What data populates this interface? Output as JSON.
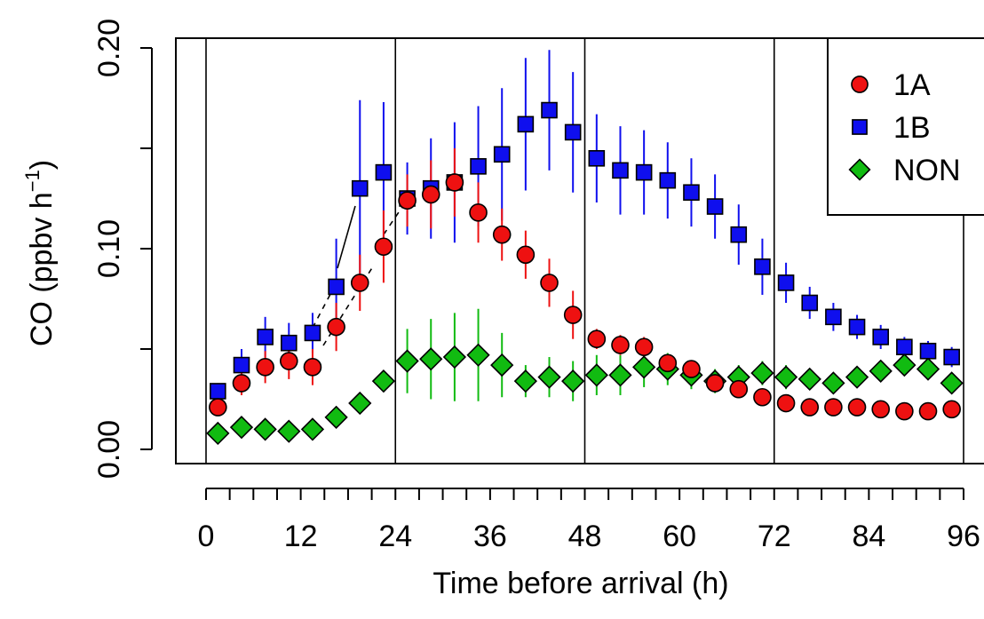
{
  "chart_data": {
    "type": "scatter",
    "xlabel": "Time before arrival (h)",
    "ylabel": "CO (ppbv h⁻¹)",
    "ylabel_parts": [
      "CO (ppbv h",
      "−1",
      ")"
    ],
    "xlim": [
      0,
      96
    ],
    "ylim": [
      0,
      0.2
    ],
    "xticks": [
      0,
      12,
      24,
      36,
      48,
      60,
      72,
      84,
      96
    ],
    "xtick_labels": [
      "0",
      "12",
      "24",
      "36",
      "48",
      "60",
      "72",
      "84",
      "96"
    ],
    "xminor_step": 3,
    "yticks": [
      0,
      0.05,
      0.1,
      0.15,
      0.2
    ],
    "ytick_labels": [
      "0.00",
      "0.10",
      "0.20"
    ],
    "ytick_label_values": [
      0,
      0.1,
      0.2
    ],
    "vlines": [
      0,
      24,
      48,
      72,
      96
    ],
    "legend_position": "top-right",
    "grid": false,
    "series": [
      {
        "name": "1A",
        "marker": "circle",
        "fill": "#ee1111",
        "errcolor": "#ee1111",
        "x": [
          1.5,
          4.5,
          7.5,
          10.5,
          13.5,
          16.5,
          19.5,
          22.5,
          25.5,
          28.5,
          31.5,
          34.5,
          37.5,
          40.5,
          43.5,
          46.5,
          49.5,
          52.5,
          55.5,
          58.5,
          61.5,
          64.5,
          67.5,
          70.5,
          73.5,
          76.5,
          79.5,
          82.5,
          85.5,
          88.5,
          91.5,
          94.5
        ],
        "y": [
          0.021,
          0.033,
          0.041,
          0.044,
          0.041,
          0.061,
          0.083,
          0.101,
          0.124,
          0.127,
          0.133,
          0.118,
          0.107,
          0.097,
          0.083,
          0.067,
          0.055,
          0.052,
          0.051,
          0.043,
          0.04,
          0.033,
          0.03,
          0.026,
          0.023,
          0.021,
          0.021,
          0.021,
          0.02,
          0.019,
          0.019,
          0.02
        ],
        "err": [
          0.004,
          0.006,
          0.008,
          0.009,
          0.009,
          0.012,
          0.014,
          0.018,
          0.013,
          0.017,
          0.017,
          0.015,
          0.013,
          0.012,
          0.012,
          0.012,
          0.005,
          0.005,
          0.005,
          0.004,
          0.004,
          0.004,
          0.003,
          0.003,
          0.003,
          0.003,
          0.003,
          0.003,
          0.003,
          0.003,
          0.003,
          0.003
        ]
      },
      {
        "name": "1B",
        "marker": "square",
        "fill": "#0f0fee",
        "errcolor": "#0f0fee",
        "x": [
          1.5,
          4.5,
          7.5,
          10.5,
          13.5,
          16.5,
          19.5,
          22.5,
          25.5,
          28.5,
          31.5,
          34.5,
          37.5,
          40.5,
          43.5,
          46.5,
          49.5,
          52.5,
          55.5,
          58.5,
          61.5,
          64.5,
          67.5,
          70.5,
          73.5,
          76.5,
          79.5,
          82.5,
          85.5,
          88.5,
          91.5,
          94.5
        ],
        "y": [
          0.029,
          0.042,
          0.056,
          0.053,
          0.058,
          0.081,
          0.13,
          0.138,
          0.125,
          0.13,
          0.133,
          0.141,
          0.147,
          0.162,
          0.169,
          0.158,
          0.145,
          0.139,
          0.138,
          0.134,
          0.128,
          0.121,
          0.107,
          0.091,
          0.083,
          0.073,
          0.066,
          0.061,
          0.056,
          0.051,
          0.049,
          0.046
        ],
        "err": [
          0.004,
          0.008,
          0.01,
          0.01,
          0.01,
          0.024,
          0.044,
          0.035,
          0.018,
          0.025,
          0.03,
          0.03,
          0.033,
          0.033,
          0.03,
          0.03,
          0.022,
          0.022,
          0.021,
          0.019,
          0.017,
          0.016,
          0.015,
          0.014,
          0.01,
          0.008,
          0.007,
          0.006,
          0.006,
          0.005,
          0.005,
          0.005
        ]
      },
      {
        "name": "NON",
        "marker": "diamond",
        "fill": "#11bb11",
        "errcolor": "#11bb11",
        "x": [
          1.5,
          4.5,
          7.5,
          10.5,
          13.5,
          16.5,
          19.5,
          22.5,
          25.5,
          28.5,
          31.5,
          34.5,
          37.5,
          40.5,
          43.5,
          46.5,
          49.5,
          52.5,
          55.5,
          58.5,
          61.5,
          64.5,
          67.5,
          70.5,
          73.5,
          76.5,
          79.5,
          82.5,
          85.5,
          88.5,
          91.5,
          94.5
        ],
        "y": [
          0.008,
          0.011,
          0.01,
          0.009,
          0.01,
          0.016,
          0.023,
          0.034,
          0.044,
          0.045,
          0.046,
          0.047,
          0.042,
          0.034,
          0.036,
          0.034,
          0.037,
          0.037,
          0.041,
          0.04,
          0.037,
          0.034,
          0.036,
          0.038,
          0.036,
          0.035,
          0.033,
          0.036,
          0.039,
          0.042,
          0.04,
          0.033
        ],
        "err": [
          0.002,
          0.002,
          0.002,
          0.002,
          0.002,
          0.003,
          0.004,
          0.005,
          0.016,
          0.02,
          0.022,
          0.023,
          0.016,
          0.008,
          0.01,
          0.01,
          0.01,
          0.01,
          0.01,
          0.008,
          0.007,
          0.006,
          0.006,
          0.006,
          0.006,
          0.005,
          0.005,
          0.005,
          0.005,
          0.005,
          0.005,
          0.005
        ]
      }
    ]
  }
}
